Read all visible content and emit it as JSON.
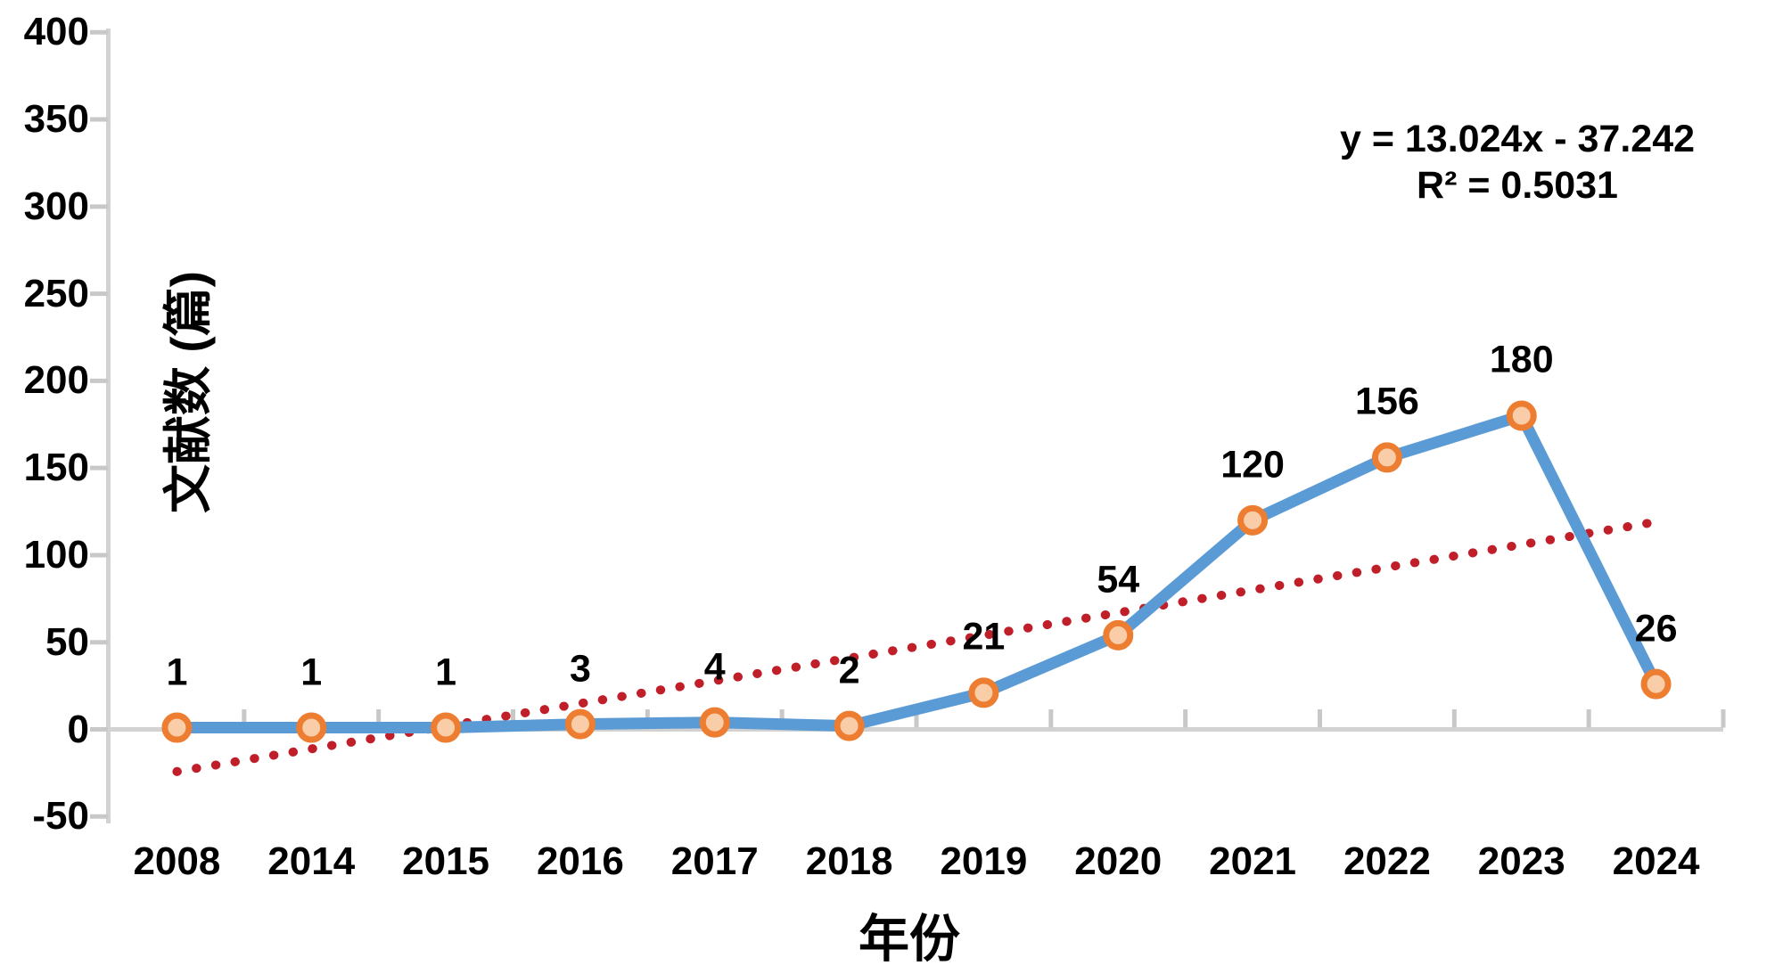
{
  "chart_data": {
    "type": "line",
    "title": "",
    "categories": [
      "2008",
      "2014",
      "2015",
      "2016",
      "2017",
      "2018",
      "2019",
      "2020",
      "2021",
      "2022",
      "2023",
      "2024"
    ],
    "series": [
      {
        "name": "文献数",
        "values": [
          1,
          1,
          1,
          3,
          4,
          2,
          21,
          54,
          120,
          156,
          180,
          26
        ]
      }
    ],
    "data_labels": [
      "1",
      "1",
      "1",
      "3",
      "4",
      "2",
      "21",
      "54",
      "120",
      "156",
      "180",
      "26"
    ],
    "xlabel": "年份",
    "ylabel": "文献数 (篇)",
    "ylim": [
      -50,
      400
    ],
    "yticks": [
      400,
      350,
      300,
      250,
      200,
      150,
      100,
      50,
      0,
      -50
    ],
    "grid": false,
    "legend": "none",
    "trendline": {
      "type": "linear",
      "equation": "y = 13.024x - 37.242",
      "r_squared": "R² = 0.5031",
      "slope": 13.024,
      "intercept": -37.242,
      "x_domain": [
        1,
        12
      ],
      "style": "dotted"
    },
    "colors": {
      "series_line": "#5B9BD5",
      "marker_ring": "#ED7D31",
      "marker_fill": "#F9CDA8",
      "trendline": "#C01E28",
      "axis_line": "#D2D2D2",
      "axis_tick": "#C8C8C8",
      "text": "#000000"
    }
  }
}
